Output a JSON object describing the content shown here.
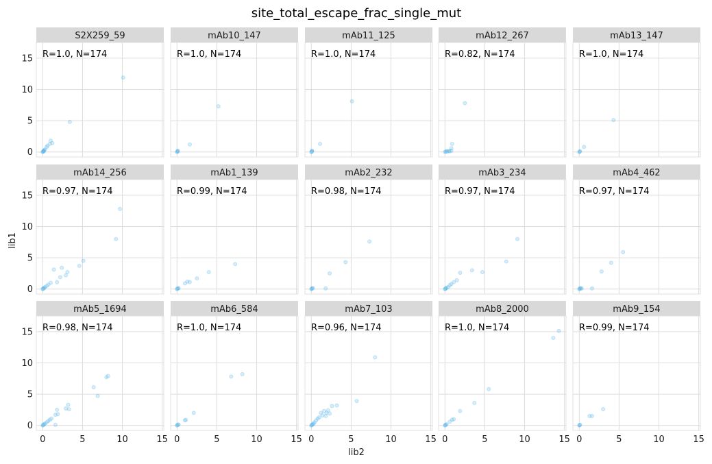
{
  "chart_data": {
    "type": "scatter",
    "title": "site_total_escape_frac_single_mut",
    "xlabel": "lib2",
    "ylabel": "lib1",
    "xlim": [
      -0.8,
      15.2
    ],
    "ylim": [
      -0.8,
      17.5
    ],
    "xticks": [
      0,
      5,
      10,
      15
    ],
    "yticks": [
      0,
      5,
      10,
      15
    ],
    "grid": true,
    "colors": {
      "points": "#56b4e9",
      "strip": "#d9d9d9",
      "grid": "#dcdcdc"
    },
    "panels": [
      {
        "name": "S2X259_59",
        "annotation": "R=1.0, N=174",
        "points": [
          [
            0,
            0
          ],
          [
            0.05,
            0.05
          ],
          [
            0.1,
            0.1
          ],
          [
            0.15,
            0.2
          ],
          [
            0.2,
            0.3
          ],
          [
            0.1,
            0.15
          ],
          [
            0.3,
            0.4
          ],
          [
            0.5,
            0.8
          ],
          [
            0.6,
            1.0
          ],
          [
            0.9,
            1.3
          ],
          [
            1.0,
            1.8
          ],
          [
            1.2,
            1.4
          ],
          [
            3.4,
            4.8
          ],
          [
            10.1,
            11.9
          ]
        ]
      },
      {
        "name": "mAb10_147",
        "annotation": "R=1.0, N=174",
        "points": [
          [
            0,
            0
          ],
          [
            0.05,
            0.05
          ],
          [
            0.1,
            0.1
          ],
          [
            0.1,
            0.2
          ],
          [
            1.6,
            1.2
          ],
          [
            5.2,
            7.3
          ]
        ]
      },
      {
        "name": "mAb11_125",
        "annotation": "R=1.0, N=174",
        "points": [
          [
            0,
            0
          ],
          [
            0.05,
            0.05
          ],
          [
            0.1,
            0.1
          ],
          [
            0.1,
            0.2
          ],
          [
            1.1,
            1.3
          ],
          [
            5.1,
            8.1
          ]
        ]
      },
      {
        "name": "mAb12_267",
        "annotation": "R=0.82, N=174",
        "points": [
          [
            0,
            0
          ],
          [
            0.1,
            0.05
          ],
          [
            0.2,
            0.1
          ],
          [
            0.3,
            0.1
          ],
          [
            0.5,
            0.15
          ],
          [
            0.6,
            0.1
          ],
          [
            0.8,
            0.2
          ],
          [
            0.8,
            0.6
          ],
          [
            0.9,
            1.3
          ],
          [
            2.5,
            7.8
          ]
        ]
      },
      {
        "name": "mAb13_147",
        "annotation": "R=1.0, N=174",
        "points": [
          [
            0,
            0
          ],
          [
            0.05,
            0.05
          ],
          [
            0.1,
            0.1
          ],
          [
            0.6,
            0.8
          ],
          [
            4.3,
            5.1
          ]
        ]
      },
      {
        "name": "mAb14_256",
        "annotation": "R=0.97, N=174",
        "points": [
          [
            0,
            0
          ],
          [
            0.05,
            0.05
          ],
          [
            0.1,
            0.1
          ],
          [
            0.2,
            0.2
          ],
          [
            0.3,
            0.3
          ],
          [
            0.5,
            0.5
          ],
          [
            0.7,
            0.7
          ],
          [
            1.0,
            1.0
          ],
          [
            1.4,
            3.1
          ],
          [
            1.8,
            1.1
          ],
          [
            2.2,
            1.9
          ],
          [
            2.4,
            3.4
          ],
          [
            2.9,
            2.2
          ],
          [
            3.1,
            2.7
          ],
          [
            4.6,
            3.7
          ],
          [
            5.1,
            4.5
          ],
          [
            9.2,
            8.0
          ],
          [
            9.7,
            12.8
          ]
        ]
      },
      {
        "name": "mAb1_139",
        "annotation": "R=0.99, N=174",
        "points": [
          [
            0,
            0
          ],
          [
            0.05,
            0.05
          ],
          [
            0.1,
            0.1
          ],
          [
            0.2,
            0.15
          ],
          [
            1.0,
            0.9
          ],
          [
            1.3,
            1.2
          ],
          [
            1.6,
            1.1
          ],
          [
            2.5,
            1.7
          ],
          [
            4.0,
            2.7
          ],
          [
            7.3,
            4.0
          ]
        ]
      },
      {
        "name": "mAb2_232",
        "annotation": "R=0.98, N=174",
        "points": [
          [
            0,
            0
          ],
          [
            0.05,
            0.05
          ],
          [
            0.1,
            0.1
          ],
          [
            0.2,
            0.15
          ],
          [
            1.8,
            0.1
          ],
          [
            2.3,
            2.5
          ],
          [
            4.3,
            4.3
          ],
          [
            7.3,
            7.6
          ]
        ]
      },
      {
        "name": "mAb3_234",
        "annotation": "R=0.97, N=174",
        "points": [
          [
            0,
            0
          ],
          [
            0.05,
            0.05
          ],
          [
            0.1,
            0.1
          ],
          [
            0.2,
            0.2
          ],
          [
            0.4,
            0.3
          ],
          [
            0.6,
            0.6
          ],
          [
            0.8,
            0.8
          ],
          [
            1.1,
            1.1
          ],
          [
            1.5,
            1.4
          ],
          [
            1.9,
            2.6
          ],
          [
            3.4,
            3.0
          ],
          [
            4.7,
            2.7
          ],
          [
            7.7,
            4.4
          ],
          [
            9.1,
            8.0
          ]
        ]
      },
      {
        "name": "mAb4_462",
        "annotation": "R=0.97, N=174",
        "points": [
          [
            0,
            0
          ],
          [
            0.05,
            0.05
          ],
          [
            0.1,
            0.1
          ],
          [
            0.2,
            0.1
          ],
          [
            0.3,
            0.1
          ],
          [
            1.6,
            0.1
          ],
          [
            2.8,
            2.8
          ],
          [
            4.0,
            4.2
          ],
          [
            5.5,
            5.9
          ]
        ]
      },
      {
        "name": "mAb5_1694",
        "annotation": "R=0.98, N=174",
        "points": [
          [
            0,
            0
          ],
          [
            0.05,
            0.05
          ],
          [
            0.1,
            0.1
          ],
          [
            0.2,
            0.2
          ],
          [
            0.3,
            0.3
          ],
          [
            0.5,
            0.5
          ],
          [
            0.7,
            0.7
          ],
          [
            0.9,
            0.9
          ],
          [
            1.1,
            1.1
          ],
          [
            1.6,
            1.7
          ],
          [
            1.8,
            2.5
          ],
          [
            1.9,
            1.8
          ],
          [
            1.6,
            0.1
          ],
          [
            2.9,
            2.7
          ],
          [
            3.2,
            3.3
          ],
          [
            3.3,
            2.6
          ],
          [
            6.4,
            6.1
          ],
          [
            6.9,
            4.7
          ],
          [
            8.0,
            7.7
          ],
          [
            8.2,
            7.9
          ]
        ]
      },
      {
        "name": "mAb6_584",
        "annotation": "R=1.0, N=174",
        "points": [
          [
            0,
            0
          ],
          [
            0.05,
            0.05
          ],
          [
            0.1,
            0.1
          ],
          [
            0.2,
            0.15
          ],
          [
            1.0,
            0.8
          ],
          [
            1.1,
            0.9
          ],
          [
            2.1,
            2.0
          ],
          [
            6.8,
            7.8
          ],
          [
            8.2,
            8.2
          ]
        ]
      },
      {
        "name": "mAb7_103",
        "annotation": "R=0.96, N=174",
        "points": [
          [
            0,
            0
          ],
          [
            0.05,
            0.05
          ],
          [
            0.1,
            0.1
          ],
          [
            0.2,
            0.2
          ],
          [
            0.3,
            0.3
          ],
          [
            0.4,
            0.5
          ],
          [
            0.6,
            0.8
          ],
          [
            0.8,
            1.1
          ],
          [
            1.0,
            1.3
          ],
          [
            1.2,
            2.0
          ],
          [
            1.4,
            1.6
          ],
          [
            1.6,
            2.3
          ],
          [
            1.8,
            1.5
          ],
          [
            1.9,
            2.0
          ],
          [
            2.1,
            2.4
          ],
          [
            2.3,
            1.9
          ],
          [
            2.6,
            3.1
          ],
          [
            3.2,
            3.2
          ],
          [
            5.7,
            3.9
          ],
          [
            8.0,
            10.9
          ]
        ]
      },
      {
        "name": "mAb8_2000",
        "annotation": "R=1.0, N=174",
        "points": [
          [
            0,
            0
          ],
          [
            0.05,
            0.05
          ],
          [
            0.1,
            0.1
          ],
          [
            0.2,
            0.2
          ],
          [
            0.6,
            0.6
          ],
          [
            0.9,
            0.9
          ],
          [
            1.1,
            1.0
          ],
          [
            1.9,
            2.3
          ],
          [
            3.7,
            3.6
          ],
          [
            5.5,
            5.8
          ],
          [
            13.6,
            14.0
          ],
          [
            14.3,
            15.1
          ]
        ]
      },
      {
        "name": "mAb9_154",
        "annotation": "R=0.99, N=174",
        "points": [
          [
            0,
            0
          ],
          [
            0.05,
            0.05
          ],
          [
            0.1,
            0.1
          ],
          [
            1.3,
            1.5
          ],
          [
            1.6,
            1.5
          ],
          [
            3.0,
            2.6
          ]
        ]
      }
    ]
  }
}
